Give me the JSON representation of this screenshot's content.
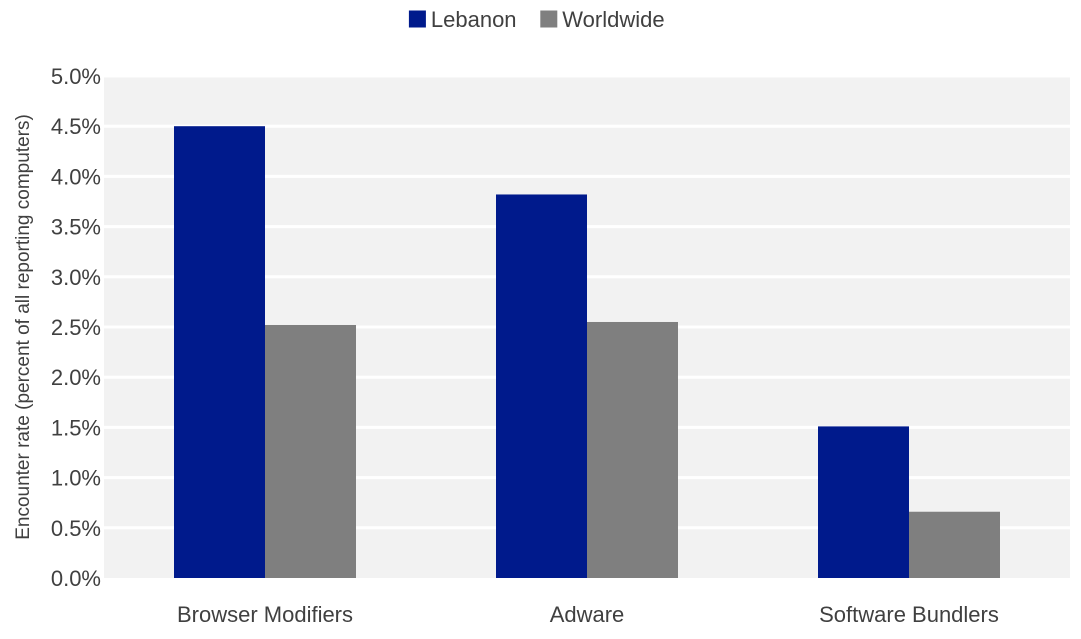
{
  "chart_data": {
    "type": "bar",
    "categories": [
      "Browser Modifiers",
      "Adware",
      "Software Bundlers"
    ],
    "series": [
      {
        "name": "Lebanon",
        "values": [
          4.5,
          3.82,
          1.51
        ],
        "color": "#001A8C"
      },
      {
        "name": "Worldwide",
        "values": [
          2.52,
          2.55,
          0.66
        ],
        "color": "#7F7F7F"
      }
    ],
    "title": "",
    "xlabel": "",
    "ylabel": "Encounter rate (percent of all reporting computers)",
    "ylim": [
      0,
      5
    ],
    "yticks": [
      "0.0%",
      "0.5%",
      "1.0%",
      "1.5%",
      "2.0%",
      "2.5%",
      "3.0%",
      "3.5%",
      "4.0%",
      "4.5%",
      "5.0%"
    ],
    "grid": true,
    "legend_position": "top-center",
    "plot_background": "#F2F2F2",
    "gridline_color": "#FFFFFF"
  }
}
